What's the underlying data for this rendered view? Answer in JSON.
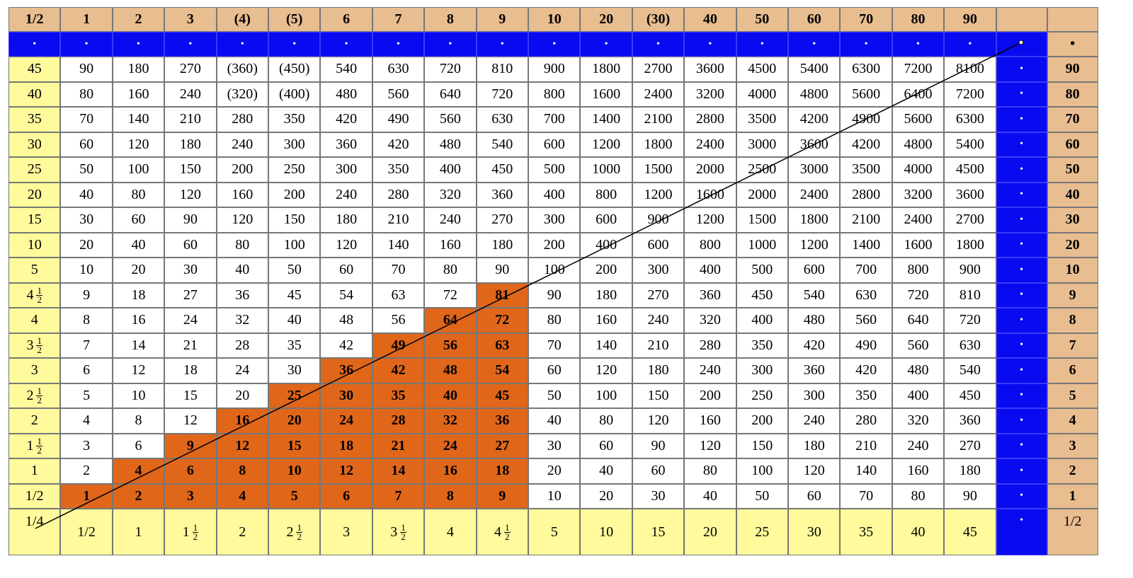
{
  "header": [
    "1/2",
    "1",
    "2",
    "3",
    "(4)",
    "(5)",
    "6",
    "7",
    "8",
    "9",
    "10",
    "20",
    "(30)",
    "40",
    "50",
    "60",
    "70",
    "80",
    "90"
  ],
  "dot": "•",
  "left_column": [
    "45",
    "40",
    "35",
    "30",
    "25",
    "20",
    "15",
    "10",
    "5",
    "4 1/2",
    "4",
    "3 1/2",
    "3",
    "2 1/2",
    "2",
    "1 1/2",
    "1",
    "1/2"
  ],
  "right_column": [
    "90",
    "80",
    "70",
    "60",
    "50",
    "40",
    "30",
    "20",
    "10",
    "9",
    "8",
    "7",
    "6",
    "5",
    "4",
    "3",
    "2",
    "1"
  ],
  "rows": [
    [
      "90",
      "180",
      "270",
      "(360)",
      "(450)",
      "540",
      "630",
      "720",
      "810",
      "900",
      "1800",
      "2700",
      "3600",
      "4500",
      "5400",
      "6300",
      "7200",
      "8100"
    ],
    [
      "80",
      "160",
      "240",
      "(320)",
      "(400)",
      "480",
      "560",
      "640",
      "720",
      "800",
      "1600",
      "2400",
      "3200",
      "4000",
      "4800",
      "5600",
      "6400",
      "7200"
    ],
    [
      "70",
      "140",
      "210",
      "280",
      "350",
      "420",
      "490",
      "560",
      "630",
      "700",
      "1400",
      "2100",
      "2800",
      "3500",
      "4200",
      "4900",
      "5600",
      "6300"
    ],
    [
      "60",
      "120",
      "180",
      "240",
      "300",
      "360",
      "420",
      "480",
      "540",
      "600",
      "1200",
      "1800",
      "2400",
      "3000",
      "3600",
      "4200",
      "4800",
      "5400"
    ],
    [
      "50",
      "100",
      "150",
      "200",
      "250",
      "300",
      "350",
      "400",
      "450",
      "500",
      "1000",
      "1500",
      "2000",
      "2500",
      "3000",
      "3500",
      "4000",
      "4500"
    ],
    [
      "40",
      "80",
      "120",
      "160",
      "200",
      "240",
      "280",
      "320",
      "360",
      "400",
      "800",
      "1200",
      "1600",
      "2000",
      "2400",
      "2800",
      "3200",
      "3600"
    ],
    [
      "30",
      "60",
      "90",
      "120",
      "150",
      "180",
      "210",
      "240",
      "270",
      "300",
      "600",
      "900",
      "1200",
      "1500",
      "1800",
      "2100",
      "2400",
      "2700"
    ],
    [
      "20",
      "40",
      "60",
      "80",
      "100",
      "120",
      "140",
      "160",
      "180",
      "200",
      "400",
      "600",
      "800",
      "1000",
      "1200",
      "1400",
      "1600",
      "1800"
    ],
    [
      "10",
      "20",
      "30",
      "40",
      "50",
      "60",
      "70",
      "80",
      "90",
      "100",
      "200",
      "300",
      "400",
      "500",
      "600",
      "700",
      "800",
      "900"
    ],
    [
      "9",
      "18",
      "27",
      "36",
      "45",
      "54",
      "63",
      "72",
      "81",
      "90",
      "180",
      "270",
      "360",
      "450",
      "540",
      "630",
      "720",
      "810"
    ],
    [
      "8",
      "16",
      "24",
      "32",
      "40",
      "48",
      "56",
      "64",
      "72",
      "80",
      "160",
      "240",
      "320",
      "400",
      "480",
      "560",
      "640",
      "720"
    ],
    [
      "7",
      "14",
      "21",
      "28",
      "35",
      "42",
      "49",
      "56",
      "63",
      "70",
      "140",
      "210",
      "280",
      "350",
      "420",
      "490",
      "560",
      "630"
    ],
    [
      "6",
      "12",
      "18",
      "24",
      "30",
      "36",
      "42",
      "48",
      "54",
      "60",
      "120",
      "180",
      "240",
      "300",
      "360",
      "420",
      "480",
      "540"
    ],
    [
      "5",
      "10",
      "15",
      "20",
      "25",
      "30",
      "35",
      "40",
      "45",
      "50",
      "100",
      "150",
      "200",
      "250",
      "300",
      "350",
      "400",
      "450"
    ],
    [
      "4",
      "8",
      "12",
      "16",
      "20",
      "24",
      "28",
      "32",
      "36",
      "40",
      "80",
      "120",
      "160",
      "200",
      "240",
      "280",
      "320",
      "360"
    ],
    [
      "3",
      "6",
      "9",
      "12",
      "15",
      "18",
      "21",
      "24",
      "27",
      "30",
      "60",
      "90",
      "120",
      "150",
      "180",
      "210",
      "240",
      "270"
    ],
    [
      "2",
      "4",
      "6",
      "8",
      "10",
      "12",
      "14",
      "16",
      "18",
      "20",
      "40",
      "60",
      "80",
      "100",
      "120",
      "140",
      "160",
      "180"
    ],
    [
      "1",
      "2",
      "3",
      "4",
      "5",
      "6",
      "7",
      "8",
      "9",
      "10",
      "20",
      "30",
      "40",
      "50",
      "60",
      "70",
      "80",
      "90"
    ]
  ],
  "bottom_row": [
    "1/4",
    "1/2",
    "1",
    "1 1/2",
    "2",
    "2 1/2",
    "3",
    "3 1/2",
    "4",
    "4 1/2",
    "5",
    "10",
    "15",
    "20",
    "25",
    "30",
    "35",
    "40",
    "45"
  ],
  "bottom_right": "1/2",
  "colors": {
    "header": "#e8bd8f",
    "blue": "#0a0af0",
    "yellow": "#fffa9c",
    "orange": "#e0661a"
  }
}
